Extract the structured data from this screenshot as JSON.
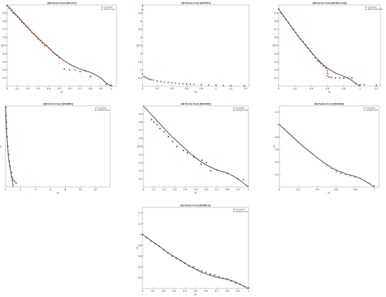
{
  "figure": {
    "background": "#ffffff",
    "curve_color": "#333333"
  },
  "chart_data": [
    {
      "type": "scatter",
      "title": "zIB Pareto Front (MOLPG)",
      "xlabel": "f1",
      "ylabel": "f2",
      "xlim": [
        0,
        1.05
      ],
      "ylim": [
        0,
        1
      ],
      "xticks": [
        0,
        0.1,
        0.2,
        0.3,
        0.4,
        0.5,
        0.6,
        0.7,
        0.8,
        0.9,
        1
      ],
      "yticks": [
        0.1,
        0.2,
        0.3,
        0.4,
        0.5,
        0.6,
        0.7,
        0.8,
        0.9
      ],
      "legend": [
        "True Pareto",
        "MOLPG Points"
      ],
      "legend_position": "top-right",
      "true_front": [
        [
          0,
          1
        ],
        [
          0.05,
          0.93
        ],
        [
          0.1,
          0.86
        ],
        [
          0.15,
          0.79
        ],
        [
          0.2,
          0.72
        ],
        [
          0.25,
          0.65
        ],
        [
          0.3,
          0.59
        ],
        [
          0.35,
          0.53
        ],
        [
          0.4,
          0.47
        ],
        [
          0.45,
          0.41
        ],
        [
          0.5,
          0.36
        ],
        [
          0.55,
          0.31
        ],
        [
          0.6,
          0.27
        ],
        [
          0.65,
          0.24
        ],
        [
          0.7,
          0.21
        ],
        [
          0.75,
          0.19
        ],
        [
          0.8,
          0.17
        ],
        [
          0.85,
          0.14
        ],
        [
          0.9,
          0.1
        ],
        [
          0.95,
          0.04
        ],
        [
          1,
          0
        ]
      ],
      "series": [
        {
          "name": "MOLPG Points",
          "color": "#b03010",
          "x": [
            0,
            0.02,
            0.04,
            0.06,
            0.08,
            0.1,
            0.12,
            0.14,
            0.16,
            0.18,
            0.2,
            0.22,
            0.24,
            0.26,
            0.28,
            0.3,
            0.32,
            0.34,
            0.36,
            0.38,
            0.4,
            0.42,
            0.44,
            0.46,
            0.48,
            0.5,
            0.55,
            0.6,
            0.65,
            0.7,
            0.75,
            0.8,
            0.95,
            1.0
          ],
          "y": [
            0.99,
            0.96,
            0.93,
            0.9,
            0.88,
            0.85,
            0.82,
            0.79,
            0.77,
            0.74,
            0.72,
            0.69,
            0.66,
            0.64,
            0.61,
            0.58,
            0.56,
            0.53,
            0.5,
            0.5,
            0.47,
            0.45,
            0.42,
            0.4,
            0.38,
            0.35,
            0.21,
            0.2,
            0.2,
            0.18,
            0.19,
            0.12,
            0.02,
            0.01
          ]
        }
      ]
    },
    {
      "type": "scatter",
      "title": "zIB Pareto Front (MOPSO)",
      "xlabel": "f1",
      "ylabel": "f2",
      "xlim": [
        0,
        1.45
      ],
      "ylim": [
        0,
        5
      ],
      "xticks": [
        0,
        0.2,
        0.4,
        0.6,
        0.8,
        1,
        1.2,
        1.4
      ],
      "yticks": [
        0.5,
        1,
        1.5,
        2,
        2.5,
        3,
        3.5,
        4,
        4.5
      ],
      "legend": [],
      "legend_position": "none",
      "true_front": [],
      "series": [
        {
          "name": "",
          "color": "#2e8b2e",
          "x": [
            0,
            0.02,
            0.04,
            0.06,
            0.08,
            0.1,
            0.12,
            0.15,
            0.2,
            0.25,
            0.3,
            0.35,
            0.4,
            0.45,
            0.5,
            0.55,
            0.6,
            0.65,
            0.7,
            0.8,
            0.9,
            1.0,
            1.1,
            1.2,
            1.38,
            0,
            0
          ],
          "y": [
            0.75,
            0.6,
            0.55,
            0.5,
            0.45,
            0.42,
            0.4,
            0.37,
            0.32,
            0.28,
            0.25,
            0.22,
            0.2,
            0.18,
            0.16,
            0.15,
            0.13,
            0.12,
            0.11,
            0.09,
            0.07,
            0.06,
            0.05,
            0.04,
            0.02,
            4.95,
            4.7
          ]
        }
      ]
    },
    {
      "type": "scatter",
      "title": "zIB Pareto Front (MOEA-D-DE)",
      "xlabel": "f1",
      "ylabel": "f2",
      "xlim": [
        0,
        1.25
      ],
      "ylim": [
        0,
        1
      ],
      "xticks": [
        0,
        0.2,
        0.4,
        0.6,
        0.8,
        1,
        1.2
      ],
      "yticks": [
        0.1,
        0.2,
        0.3,
        0.4,
        0.5,
        0.6,
        0.7,
        0.8,
        0.9
      ],
      "legend": [
        "True Pareto",
        "MOEA-D-DE Points"
      ],
      "legend_position": "top-right",
      "true_front": [
        [
          0,
          0.95
        ],
        [
          0.05,
          0.88
        ],
        [
          0.1,
          0.81
        ],
        [
          0.15,
          0.74
        ],
        [
          0.2,
          0.67
        ],
        [
          0.25,
          0.6
        ],
        [
          0.3,
          0.54
        ],
        [
          0.35,
          0.48
        ],
        [
          0.4,
          0.42
        ],
        [
          0.45,
          0.36
        ],
        [
          0.5,
          0.31
        ],
        [
          0.55,
          0.26
        ],
        [
          0.6,
          0.22
        ],
        [
          0.65,
          0.19
        ],
        [
          0.7,
          0.16
        ],
        [
          0.75,
          0.14
        ],
        [
          0.8,
          0.12
        ],
        [
          0.85,
          0.1
        ],
        [
          0.9,
          0.07
        ],
        [
          0.95,
          0.03
        ],
        [
          1,
          0
        ]
      ],
      "series": [
        {
          "name": "MOEA-D-DE Points",
          "color": "#8b3a1a",
          "x": [
            0,
            0.03,
            0.06,
            0.09,
            0.12,
            0.15,
            0.18,
            0.21,
            0.24,
            0.27,
            0.3,
            0.33,
            0.36,
            0.39,
            0.42,
            0.45,
            0.48,
            0.5,
            0.52,
            0.55,
            0.58,
            0.6,
            0.6,
            0.6,
            0.62,
            0.65,
            0.7,
            0.75,
            0.8,
            0.85,
            0.9,
            0.95,
            1.0,
            1.05,
            1.2
          ],
          "y": [
            0.95,
            0.9,
            0.86,
            0.82,
            0.78,
            0.74,
            0.7,
            0.66,
            0.62,
            0.58,
            0.55,
            0.51,
            0.47,
            0.43,
            0.39,
            0.35,
            0.31,
            0.3,
            0.28,
            0.25,
            0.22,
            0.19,
            0.16,
            0.13,
            0.11,
            0.11,
            0.1,
            0.1,
            0.1,
            0.1,
            0.1,
            0.03,
            0.02,
            0.02,
            0.01
          ]
        }
      ]
    },
    {
      "type": "scatter",
      "title": "zIB Pareto Front (MODMO)",
      "xlabel": "f1",
      "ylabel": "f2",
      "xlim": [
        0,
        14
      ],
      "ylim": [
        0,
        1
      ],
      "xticks": [
        0,
        2,
        4,
        6,
        8,
        10,
        12
      ],
      "yticks": [],
      "legend": [
        "True Pareto",
        "MODMO Points"
      ],
      "legend_position": "top-right",
      "true_front": [
        [
          0,
          1
        ],
        [
          0.1,
          0.75
        ],
        [
          0.2,
          0.58
        ],
        [
          0.3,
          0.45
        ],
        [
          0.4,
          0.36
        ],
        [
          0.5,
          0.29
        ],
        [
          0.6,
          0.23
        ],
        [
          0.7,
          0.18
        ],
        [
          0.8,
          0.13
        ],
        [
          0.9,
          0.08
        ],
        [
          1,
          0
        ]
      ],
      "series": [
        {
          "name": "MODMO Points",
          "color": "#a02808",
          "x": [
            0,
            0.05,
            0.1,
            0.15,
            0.2,
            0.3,
            0.4,
            0.5,
            0.6,
            0.8,
            0.9,
            1.0,
            1.2,
            1.4
          ],
          "y": [
            0.98,
            0.88,
            0.8,
            0.72,
            0.62,
            0.5,
            0.4,
            0.32,
            0.26,
            0.18,
            0.12,
            0.09,
            0.07,
            0.05
          ]
        }
      ]
    },
    {
      "type": "scatter",
      "title": "zIB Pareto Front (MOGWO)",
      "xlabel": "f1",
      "ylabel": "f2",
      "xlim": [
        0,
        1
      ],
      "ylim": [
        0,
        1
      ],
      "xticks": [
        0,
        0.1,
        0.2,
        0.3,
        0.4,
        0.5,
        0.6,
        0.7,
        0.8,
        0.9,
        1
      ],
      "yticks": [
        0.1,
        0.2,
        0.3,
        0.4,
        0.5,
        0.6,
        0.7,
        0.8,
        0.9
      ],
      "legend": [
        "True Pareto",
        "MOGWO Points"
      ],
      "legend_position": "top-right",
      "true_front": [
        [
          0,
          1
        ],
        [
          0.05,
          0.93
        ],
        [
          0.1,
          0.86
        ],
        [
          0.15,
          0.79
        ],
        [
          0.2,
          0.72
        ],
        [
          0.25,
          0.65
        ],
        [
          0.3,
          0.59
        ],
        [
          0.35,
          0.53
        ],
        [
          0.4,
          0.47
        ],
        [
          0.45,
          0.41
        ],
        [
          0.5,
          0.36
        ],
        [
          0.55,
          0.31
        ],
        [
          0.6,
          0.27
        ],
        [
          0.65,
          0.24
        ],
        [
          0.7,
          0.21
        ],
        [
          0.75,
          0.19
        ],
        [
          0.8,
          0.17
        ],
        [
          0.85,
          0.14
        ],
        [
          0.9,
          0.1
        ],
        [
          0.95,
          0.05
        ],
        [
          1,
          0
        ]
      ],
      "series": [
        {
          "name": "MOGWO Points",
          "color": "#333399",
          "x": [
            0.08,
            0.1,
            0.13,
            0.16,
            0.2,
            0.24,
            0.28,
            0.32,
            0.38,
            0.42,
            0.48,
            0.55,
            0.56,
            0.6,
            0.64,
            0.7,
            0.8,
            0.9,
            0.95
          ],
          "y": [
            0.83,
            0.8,
            0.77,
            0.72,
            0.68,
            0.62,
            0.56,
            0.5,
            0.45,
            0.42,
            0.37,
            0.28,
            0.33,
            0.3,
            0.2,
            0.21,
            0.17,
            0.1,
            0.09
          ]
        }
      ]
    },
    {
      "type": "scatter",
      "title": "zIB Pareto Front (MOSMO)",
      "xlabel": "f1",
      "ylabel": "f2",
      "xlim": [
        0,
        1.05
      ],
      "ylim": [
        0,
        1.3
      ],
      "xticks": [
        0,
        0.2,
        0.4,
        0.6,
        0.8,
        1
      ],
      "yticks": [
        0.2,
        0.4,
        0.6,
        0.8,
        1,
        1.2
      ],
      "legend": [
        "True Pareto",
        "MOSMO Points"
      ],
      "legend_position": "top-right",
      "true_front": [
        [
          0,
          1
        ],
        [
          0.05,
          0.93
        ],
        [
          0.1,
          0.86
        ],
        [
          0.15,
          0.79
        ],
        [
          0.2,
          0.72
        ],
        [
          0.25,
          0.65
        ],
        [
          0.3,
          0.59
        ],
        [
          0.35,
          0.53
        ],
        [
          0.4,
          0.47
        ],
        [
          0.45,
          0.41
        ],
        [
          0.5,
          0.36
        ],
        [
          0.55,
          0.31
        ],
        [
          0.6,
          0.27
        ],
        [
          0.65,
          0.24
        ],
        [
          0.7,
          0.21
        ],
        [
          0.75,
          0.19
        ],
        [
          0.8,
          0.17
        ],
        [
          0.85,
          0.14
        ],
        [
          0.9,
          0.1
        ],
        [
          0.95,
          0.05
        ],
        [
          1,
          0
        ]
      ],
      "series": [
        {
          "name": "MOSMO Points",
          "color": "#9a5fb0",
          "x": [
            0,
            0.05,
            0.1,
            0.15,
            0.2,
            0.25,
            0.3,
            0.35,
            0.4,
            0.45,
            0.5,
            0.55,
            0.6,
            0.65,
            0.7,
            0.75,
            0.8,
            0.85,
            0.9,
            0.95,
            1.0
          ],
          "y": [
            1,
            0.93,
            0.86,
            0.79,
            0.72,
            0.65,
            0.59,
            0.53,
            0.47,
            0.41,
            0.35,
            0.3,
            0.25,
            0.22,
            0.2,
            0.18,
            0.16,
            0.14,
            0.1,
            0.06,
            0.02
          ]
        }
      ]
    },
    {
      "type": "scatter",
      "title": "zIB Pareto Front (MOMICA)",
      "xlabel": "f1",
      "ylabel": "f2",
      "xlim": [
        0,
        1
      ],
      "ylim": [
        0,
        1.5
      ],
      "xticks": [
        0,
        0.1,
        0.2,
        0.3,
        0.4,
        0.5,
        0.6,
        0.7,
        0.8,
        0.9,
        1
      ],
      "yticks": [
        0.2,
        0.4,
        0.6,
        0.8,
        1,
        1.2,
        1.4
      ],
      "legend": [
        "True Pareto",
        "MOMICA Points"
      ],
      "legend_position": "top-right",
      "true_front": [
        [
          0,
          1
        ],
        [
          0.05,
          0.93
        ],
        [
          0.1,
          0.86
        ],
        [
          0.15,
          0.79
        ],
        [
          0.2,
          0.72
        ],
        [
          0.25,
          0.65
        ],
        [
          0.3,
          0.59
        ],
        [
          0.35,
          0.53
        ],
        [
          0.4,
          0.47
        ],
        [
          0.45,
          0.41
        ],
        [
          0.5,
          0.36
        ],
        [
          0.55,
          0.31
        ],
        [
          0.6,
          0.27
        ],
        [
          0.65,
          0.24
        ],
        [
          0.7,
          0.21
        ],
        [
          0.75,
          0.19
        ],
        [
          0.8,
          0.17
        ],
        [
          0.85,
          0.14
        ],
        [
          0.9,
          0.1
        ],
        [
          0.95,
          0.05
        ],
        [
          1,
          0
        ]
      ],
      "series": [
        {
          "name": "MOMICA Points",
          "color": "#444444",
          "x": [
            0,
            0.04,
            0.08,
            0.12,
            0.16,
            0.2,
            0.24,
            0.28,
            0.32,
            0.36,
            0.4,
            0.44,
            0.48,
            0.52,
            0.56,
            0.6,
            0.64,
            0.68,
            0.72,
            0.76,
            0.8,
            0.84,
            0.88,
            0.92,
            0.96,
            1.0
          ],
          "y": [
            1,
            0.94,
            0.88,
            0.83,
            0.78,
            0.72,
            0.66,
            0.6,
            0.56,
            0.52,
            0.47,
            0.42,
            0.4,
            0.35,
            0.33,
            0.3,
            0.27,
            0.25,
            0.22,
            0.19,
            0.18,
            0.14,
            0.1,
            0.08,
            0.04,
            0.01
          ]
        }
      ]
    }
  ]
}
